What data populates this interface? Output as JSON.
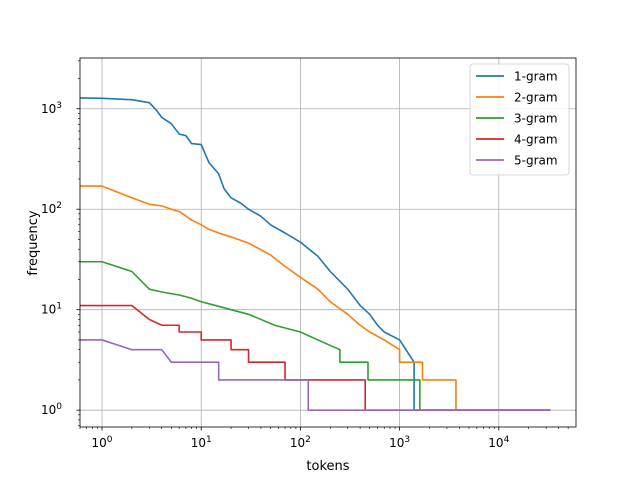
{
  "chart_data": {
    "type": "line",
    "title": "",
    "xlabel": "tokens",
    "ylabel": "frequency",
    "xscale": "log",
    "yscale": "log",
    "xlim": [
      0.6,
      60000
    ],
    "ylim": [
      0.68,
      3200
    ],
    "grid": true,
    "legend": "top-right",
    "x_ticks": [
      {
        "value": 1,
        "base": "10",
        "exp": "0"
      },
      {
        "value": 10,
        "base": "10",
        "exp": "1"
      },
      {
        "value": 100,
        "base": "10",
        "exp": "2"
      },
      {
        "value": 1000,
        "base": "10",
        "exp": "3"
      },
      {
        "value": 10000,
        "base": "10",
        "exp": "4"
      }
    ],
    "y_ticks": [
      {
        "value": 1,
        "base": "10",
        "exp": "0"
      },
      {
        "value": 10,
        "base": "10",
        "exp": "1"
      },
      {
        "value": 100,
        "base": "10",
        "exp": "2"
      },
      {
        "value": 1000,
        "base": "10",
        "exp": "3"
      }
    ],
    "series": [
      {
        "name": "1-gram",
        "color": "#1f77b4",
        "points": [
          [
            0.6,
            1280
          ],
          [
            1,
            1270
          ],
          [
            2,
            1230
          ],
          [
            3,
            1150
          ],
          [
            3.5,
            980
          ],
          [
            4,
            820
          ],
          [
            5,
            710
          ],
          [
            6,
            560
          ],
          [
            7,
            540
          ],
          [
            8,
            450
          ],
          [
            10,
            440
          ],
          [
            12,
            290
          ],
          [
            15,
            225
          ],
          [
            17,
            160
          ],
          [
            20,
            130
          ],
          [
            25,
            115
          ],
          [
            30,
            100
          ],
          [
            40,
            85
          ],
          [
            50,
            70
          ],
          [
            70,
            58
          ],
          [
            100,
            47
          ],
          [
            150,
            34
          ],
          [
            200,
            24
          ],
          [
            300,
            16
          ],
          [
            400,
            11
          ],
          [
            500,
            9
          ],
          [
            600,
            7
          ],
          [
            700,
            6
          ],
          [
            1000,
            5
          ],
          [
            1400,
            3
          ],
          [
            1400,
            1
          ],
          [
            2200,
            1
          ],
          [
            2200,
            1
          ],
          [
            33000,
            1
          ]
        ]
      },
      {
        "name": "2-gram",
        "color": "#ff7f0e",
        "points": [
          [
            0.6,
            170
          ],
          [
            1,
            170
          ],
          [
            2,
            130
          ],
          [
            3,
            112
          ],
          [
            4,
            108
          ],
          [
            5,
            100
          ],
          [
            6,
            95
          ],
          [
            8,
            78
          ],
          [
            10,
            70
          ],
          [
            12,
            63
          ],
          [
            15,
            58
          ],
          [
            20,
            53
          ],
          [
            30,
            46
          ],
          [
            50,
            35
          ],
          [
            70,
            27
          ],
          [
            100,
            21
          ],
          [
            150,
            16
          ],
          [
            200,
            12
          ],
          [
            300,
            9
          ],
          [
            400,
            7
          ],
          [
            500,
            6
          ],
          [
            700,
            5
          ],
          [
            1000,
            4
          ],
          [
            1000,
            3
          ],
          [
            1700,
            3
          ],
          [
            1700,
            2
          ],
          [
            3700,
            2
          ],
          [
            3700,
            1
          ],
          [
            33000,
            1
          ]
        ]
      },
      {
        "name": "3-gram",
        "color": "#2ca02c",
        "points": [
          [
            0.6,
            30
          ],
          [
            1,
            30
          ],
          [
            2,
            24
          ],
          [
            3,
            16
          ],
          [
            4,
            15
          ],
          [
            6,
            14
          ],
          [
            8,
            13
          ],
          [
            10,
            12
          ],
          [
            14,
            11
          ],
          [
            20,
            10
          ],
          [
            30,
            9
          ],
          [
            40,
            8
          ],
          [
            55,
            7
          ],
          [
            100,
            6
          ],
          [
            150,
            5
          ],
          [
            250,
            4
          ],
          [
            250,
            3
          ],
          [
            480,
            3
          ],
          [
            480,
            2
          ],
          [
            1600,
            2
          ],
          [
            1600,
            1
          ],
          [
            33000,
            1
          ]
        ]
      },
      {
        "name": "4-gram",
        "color": "#d62728",
        "points": [
          [
            0.6,
            11
          ],
          [
            1,
            11
          ],
          [
            2,
            11
          ],
          [
            3,
            8
          ],
          [
            4,
            7
          ],
          [
            6,
            7
          ],
          [
            6,
            6
          ],
          [
            10,
            6
          ],
          [
            10,
            5
          ],
          [
            15,
            5
          ],
          [
            20,
            5
          ],
          [
            20,
            4
          ],
          [
            30,
            4
          ],
          [
            30,
            3
          ],
          [
            70,
            3
          ],
          [
            70,
            2
          ],
          [
            450,
            2
          ],
          [
            450,
            1
          ],
          [
            33000,
            1
          ]
        ]
      },
      {
        "name": "5-gram",
        "color": "#9467bd",
        "points": [
          [
            0.6,
            5
          ],
          [
            1,
            5
          ],
          [
            2,
            4
          ],
          [
            4,
            4
          ],
          [
            5,
            3
          ],
          [
            9,
            3
          ],
          [
            15,
            3
          ],
          [
            15,
            2
          ],
          [
            120,
            2
          ],
          [
            120,
            1
          ],
          [
            33000,
            1
          ]
        ]
      }
    ]
  }
}
